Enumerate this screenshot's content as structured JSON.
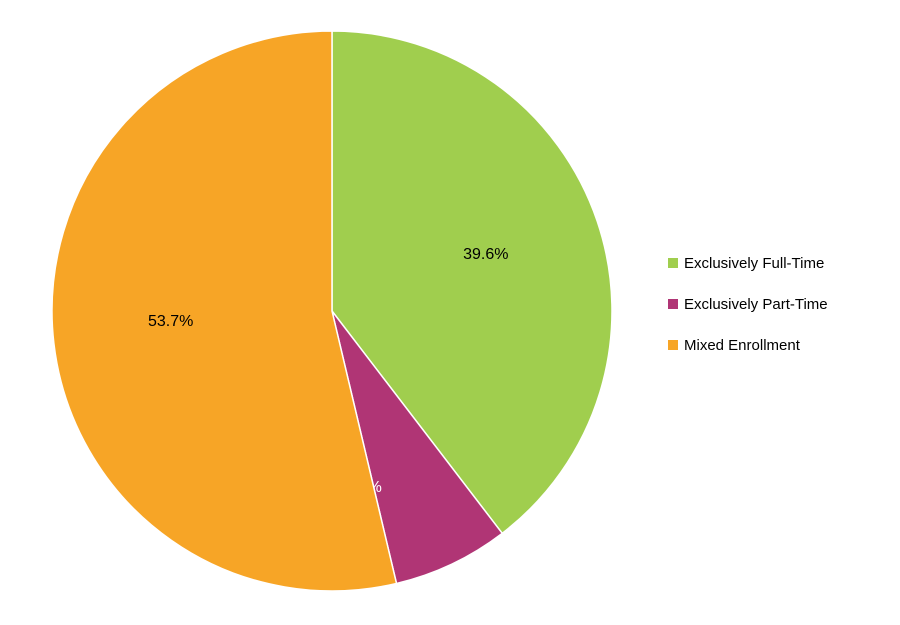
{
  "chart_data": {
    "type": "pie",
    "title": "",
    "slices": [
      {
        "label": "Exclusively Full-Time",
        "value": 39.6,
        "display": "39.6%",
        "color": "#A0CE4E"
      },
      {
        "label": "Exclusively Part-Time",
        "value": 6.7,
        "display": "6.7%",
        "color": "#B03575"
      },
      {
        "label": "Mixed Enrollment",
        "value": 53.7,
        "display": "53.7%",
        "color": "#F7A526"
      }
    ],
    "start_angle": "12 o'clock",
    "direction": "clockwise",
    "legend_position": "right"
  }
}
